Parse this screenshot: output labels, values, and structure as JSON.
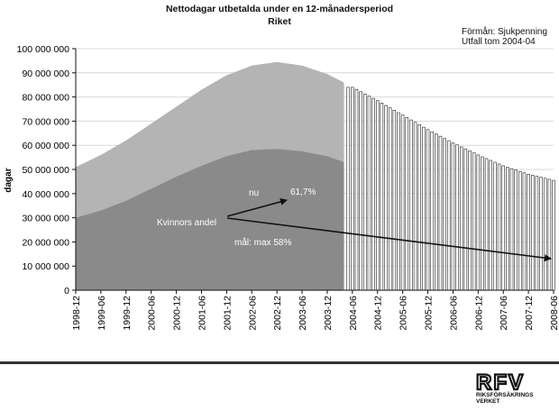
{
  "header": {
    "title": "Nettodagar utbetalda under en 12-månadersperiod",
    "subtitle": "Riket",
    "benefit": "Förmån: Sjukpenning",
    "outcome": "Utfall tom 2004-04"
  },
  "footer": {
    "logo_text": "RFV",
    "org_name": "RIKSFÖRSÄKRINGS VERKET"
  },
  "colors": {
    "total_area": "#b4b4b4",
    "women_area": "#8a8a8a",
    "forecast_bar": "#ffffff",
    "bar_stroke": "#222222",
    "grid": "#d8d8d8",
    "axis": "#111111"
  },
  "chart_data": {
    "type": "area",
    "title": "Nettodagar utbetalda under en 12-månadersperiod",
    "subtitle": "Riket",
    "ylabel": "dagar",
    "xlabel": "",
    "ylim": [
      0,
      100000000
    ],
    "yticks": [
      0,
      10000000,
      20000000,
      30000000,
      40000000,
      50000000,
      60000000,
      70000000,
      80000000,
      90000000,
      100000000
    ],
    "ytick_labels": [
      "0",
      "10 000 000",
      "20 000 000",
      "30 000 000",
      "40 000 000",
      "50 000 000",
      "60 000 000",
      "70 000 000",
      "80 000 000",
      "90 000 000",
      "100 000 000"
    ],
    "x_tick_labels": [
      "1998-12",
      "1999-06",
      "1999-12",
      "2000-06",
      "2000-12",
      "2001-06",
      "2001-12",
      "2002-06",
      "2002-12",
      "2003-06",
      "2003-12",
      "2004-06",
      "2004-12",
      "2005-06",
      "2005-12",
      "2006-06",
      "2006-12",
      "2007-06",
      "2007-12",
      "2008-06"
    ],
    "grid": true,
    "actual_period": [
      "1998-12",
      "2004-04"
    ],
    "forecast_period": [
      "2004-05",
      "2008-06"
    ],
    "series": [
      {
        "kind": "area",
        "points": [
          [
            "1998-12",
            51000000
          ],
          [
            "1999-06",
            56000000
          ],
          [
            "1999-12",
            62000000
          ],
          [
            "2000-06",
            69000000
          ],
          [
            "2000-12",
            76000000
          ],
          [
            "2001-06",
            83000000
          ],
          [
            "2001-12",
            89000000
          ],
          [
            "2002-06",
            93000000
          ],
          [
            "2002-12",
            94500000
          ],
          [
            "2003-06",
            93000000
          ],
          [
            "2003-12",
            89500000
          ],
          [
            "2004-04",
            86000000
          ]
        ]
      },
      {
        "kind": "area",
        "points": [
          [
            "1998-12",
            30000000
          ],
          [
            "1999-06",
            33000000
          ],
          [
            "1999-12",
            37000000
          ],
          [
            "2000-06",
            42000000
          ],
          [
            "2000-12",
            47000000
          ],
          [
            "2001-06",
            51500000
          ],
          [
            "2001-12",
            55500000
          ],
          [
            "2002-06",
            58000000
          ],
          [
            "2002-12",
            58500000
          ],
          [
            "2003-06",
            57500000
          ],
          [
            "2003-12",
            55500000
          ],
          [
            "2004-04",
            53000000
          ]
        ]
      },
      {
        "kind": "bar",
        "points": [
          [
            "2004-06",
            84000000
          ],
          [
            "2004-12",
            78500000
          ],
          [
            "2005-06",
            72500000
          ],
          [
            "2005-12",
            66500000
          ],
          [
            "2006-06",
            61000000
          ],
          [
            "2006-12",
            56000000
          ],
          [
            "2007-06",
            51500000
          ],
          [
            "2007-12",
            48000000
          ],
          [
            "2008-06",
            45500000
          ]
        ]
      }
    ],
    "annotations": [
      {
        "id": "nu",
        "text": "nu"
      },
      {
        "id": "share_now",
        "text": "61,7%"
      },
      {
        "id": "women_share",
        "text": "Kvinnors andel"
      },
      {
        "id": "goal",
        "text": "mål: max 58%"
      }
    ]
  }
}
